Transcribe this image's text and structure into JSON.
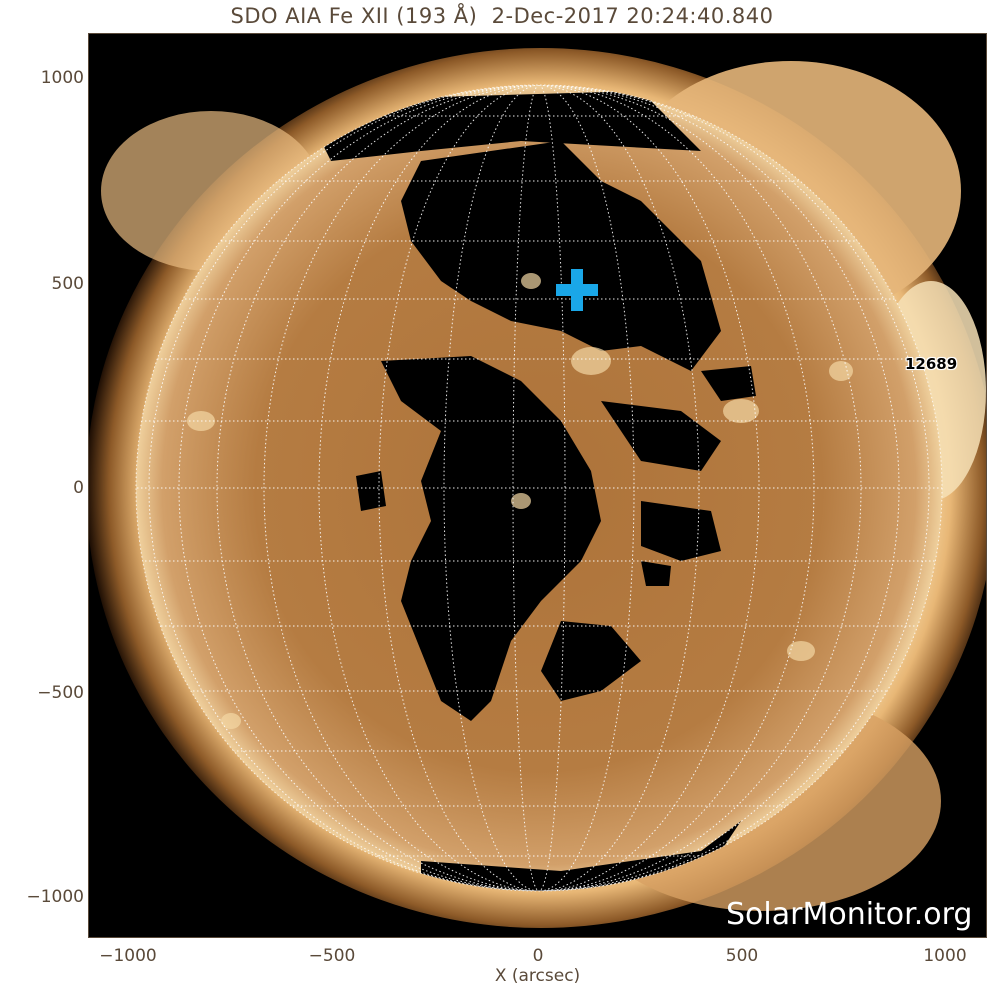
{
  "title": "SDO AIA Fe XII (193 Å)  2-Dec-2017 20:24:40.840",
  "x_axis": {
    "label": "X (arcsec)",
    "ticks": [
      "−1000",
      "−500",
      "0",
      "500",
      "1000"
    ]
  },
  "y_axis": {
    "ticks": [
      "1000",
      "500",
      "0",
      "−500",
      "−1000"
    ]
  },
  "active_region_label": "12689",
  "watermark": "SolarMonitor.org",
  "colors": {
    "sun_base": "#a86e34",
    "corona": "#f0c488",
    "coronal_hole": "#000000",
    "grid": "#ffffff",
    "marker": "#1aa7e8",
    "axis_text": "#5a4a3a"
  },
  "icons": {
    "marker": "plus-marker-icon"
  }
}
